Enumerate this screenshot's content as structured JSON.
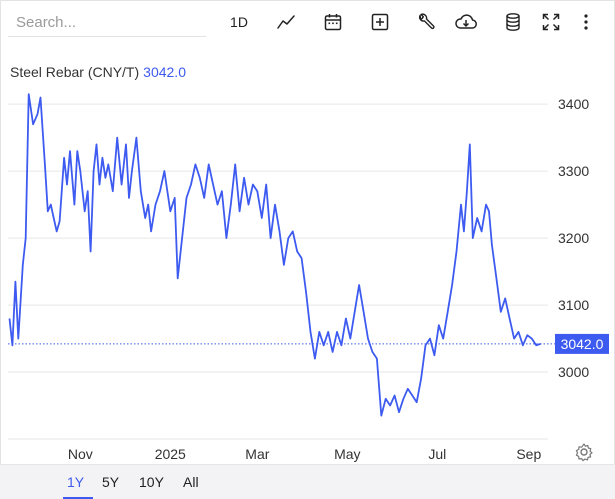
{
  "search": {
    "placeholder": "Search..."
  },
  "toolbar": {
    "interval_label": "1D",
    "icons": [
      "chart-line-icon",
      "calendar-icon",
      "add-box-icon",
      "wrench-icon",
      "cloud-download-icon",
      "database-icon",
      "fullscreen-icon",
      "more-vertical-icon"
    ]
  },
  "colors": {
    "series": "#3d5bf0",
    "grid": "#e6e6e6",
    "text": "#333333"
  },
  "chart_data": {
    "type": "line",
    "title": "",
    "series": [
      {
        "name": "Steel Rebar (CNY/T)",
        "last_value": "3042.0",
        "points": [
          [
            "2024-09-14",
            3080
          ],
          [
            "2024-09-16",
            3040
          ],
          [
            "2024-09-18",
            3135
          ],
          [
            "2024-09-20",
            3050
          ],
          [
            "2024-09-23",
            3160
          ],
          [
            "2024-09-25",
            3200
          ],
          [
            "2024-09-27",
            3415
          ],
          [
            "2024-09-30",
            3370
          ],
          [
            "2024-10-03",
            3385
          ],
          [
            "2024-10-05",
            3410
          ],
          [
            "2024-10-08",
            3310
          ],
          [
            "2024-10-10",
            3240
          ],
          [
            "2024-10-12",
            3250
          ],
          [
            "2024-10-14",
            3230
          ],
          [
            "2024-10-16",
            3210
          ],
          [
            "2024-10-18",
            3225
          ],
          [
            "2024-10-21",
            3320
          ],
          [
            "2024-10-23",
            3280
          ],
          [
            "2024-10-25",
            3330
          ],
          [
            "2024-10-28",
            3250
          ],
          [
            "2024-10-30",
            3330
          ],
          [
            "2024-11-01",
            3300
          ],
          [
            "2024-11-04",
            3240
          ],
          [
            "2024-11-06",
            3270
          ],
          [
            "2024-11-08",
            3180
          ],
          [
            "2024-11-10",
            3300
          ],
          [
            "2024-11-12",
            3340
          ],
          [
            "2024-11-14",
            3280
          ],
          [
            "2024-11-16",
            3320
          ],
          [
            "2024-11-18",
            3290
          ],
          [
            "2024-11-20",
            3310
          ],
          [
            "2024-11-23",
            3270
          ],
          [
            "2024-11-26",
            3350
          ],
          [
            "2024-11-29",
            3280
          ],
          [
            "2024-12-02",
            3340
          ],
          [
            "2024-12-04",
            3260
          ],
          [
            "2024-12-06",
            3300
          ],
          [
            "2024-12-09",
            3350
          ],
          [
            "2024-12-12",
            3270
          ],
          [
            "2024-12-15",
            3230
          ],
          [
            "2024-12-17",
            3250
          ],
          [
            "2024-12-19",
            3210
          ],
          [
            "2024-12-22",
            3250
          ],
          [
            "2024-12-25",
            3270
          ],
          [
            "2024-12-28",
            3300
          ],
          [
            "2025-01-01",
            3240
          ],
          [
            "2025-01-04",
            3260
          ],
          [
            "2025-01-06",
            3140
          ],
          [
            "2025-01-09",
            3200
          ],
          [
            "2025-01-12",
            3260
          ],
          [
            "2025-01-15",
            3280
          ],
          [
            "2025-01-18",
            3310
          ],
          [
            "2025-01-21",
            3290
          ],
          [
            "2025-01-24",
            3260
          ],
          [
            "2025-01-27",
            3310
          ],
          [
            "2025-01-30",
            3280
          ],
          [
            "2025-02-02",
            3250
          ],
          [
            "2025-02-05",
            3270
          ],
          [
            "2025-02-08",
            3200
          ],
          [
            "2025-02-11",
            3250
          ],
          [
            "2025-02-14",
            3310
          ],
          [
            "2025-02-17",
            3240
          ],
          [
            "2025-02-20",
            3290
          ],
          [
            "2025-02-23",
            3250
          ],
          [
            "2025-02-26",
            3280
          ],
          [
            "2025-03-01",
            3270
          ],
          [
            "2025-03-04",
            3230
          ],
          [
            "2025-03-07",
            3280
          ],
          [
            "2025-03-10",
            3200
          ],
          [
            "2025-03-13",
            3250
          ],
          [
            "2025-03-16",
            3210
          ],
          [
            "2025-03-19",
            3160
          ],
          [
            "2025-03-22",
            3200
          ],
          [
            "2025-03-25",
            3210
          ],
          [
            "2025-03-28",
            3180
          ],
          [
            "2025-03-31",
            3170
          ],
          [
            "2025-04-03",
            3120
          ],
          [
            "2025-04-06",
            3060
          ],
          [
            "2025-04-09",
            3020
          ],
          [
            "2025-04-12",
            3060
          ],
          [
            "2025-04-15",
            3040
          ],
          [
            "2025-04-18",
            3060
          ],
          [
            "2025-04-21",
            3030
          ],
          [
            "2025-04-24",
            3060
          ],
          [
            "2025-04-27",
            3040
          ],
          [
            "2025-04-30",
            3080
          ],
          [
            "2025-05-03",
            3050
          ],
          [
            "2025-05-06",
            3090
          ],
          [
            "2025-05-09",
            3130
          ],
          [
            "2025-05-12",
            3090
          ],
          [
            "2025-05-15",
            3050
          ],
          [
            "2025-05-18",
            3030
          ],
          [
            "2025-05-21",
            3020
          ],
          [
            "2025-05-24",
            2935
          ],
          [
            "2025-05-27",
            2960
          ],
          [
            "2025-05-30",
            2950
          ],
          [
            "2025-06-02",
            2965
          ],
          [
            "2025-06-05",
            2940
          ],
          [
            "2025-06-08",
            2960
          ],
          [
            "2025-06-11",
            2975
          ],
          [
            "2025-06-14",
            2965
          ],
          [
            "2025-06-17",
            2955
          ],
          [
            "2025-06-20",
            2990
          ],
          [
            "2025-06-23",
            3040
          ],
          [
            "2025-06-26",
            3050
          ],
          [
            "2025-06-29",
            3025
          ],
          [
            "2025-07-02",
            3070
          ],
          [
            "2025-07-05",
            3050
          ],
          [
            "2025-07-08",
            3090
          ],
          [
            "2025-07-11",
            3130
          ],
          [
            "2025-07-14",
            3180
          ],
          [
            "2025-07-17",
            3250
          ],
          [
            "2025-07-19",
            3210
          ],
          [
            "2025-07-21",
            3270
          ],
          [
            "2025-07-23",
            3340
          ],
          [
            "2025-07-25",
            3200
          ],
          [
            "2025-07-28",
            3230
          ],
          [
            "2025-07-31",
            3210
          ],
          [
            "2025-08-03",
            3250
          ],
          [
            "2025-08-05",
            3240
          ],
          [
            "2025-08-07",
            3190
          ],
          [
            "2025-08-10",
            3140
          ],
          [
            "2025-08-13",
            3090
          ],
          [
            "2025-08-16",
            3110
          ],
          [
            "2025-08-19",
            3080
          ],
          [
            "2025-08-22",
            3050
          ],
          [
            "2025-08-25",
            3060
          ],
          [
            "2025-08-28",
            3040
          ],
          [
            "2025-08-31",
            3055
          ],
          [
            "2025-09-03",
            3050
          ],
          [
            "2025-09-06",
            3040
          ],
          [
            "2025-09-09",
            3042
          ]
        ]
      }
    ],
    "x_ticks": [
      {
        "date": "2024-11-01",
        "label": "Nov"
      },
      {
        "date": "2025-01-01",
        "label": "2025"
      },
      {
        "date": "2025-03-01",
        "label": "Mar"
      },
      {
        "date": "2025-05-01",
        "label": "May"
      },
      {
        "date": "2025-07-01",
        "label": "Jul"
      },
      {
        "date": "2025-09-01",
        "label": "Sep"
      }
    ],
    "y_ticks": [
      3000,
      3100,
      3200,
      3300,
      3400
    ],
    "ylim": [
      2900,
      3460
    ],
    "xlim": [
      "2024-09-13",
      "2025-09-14"
    ],
    "grid": "horizontal",
    "legend": "top-left",
    "last_price_label": "3042.0"
  },
  "ranges": [
    "1Y",
    "5Y",
    "10Y",
    "All"
  ],
  "active_range": "1Y"
}
